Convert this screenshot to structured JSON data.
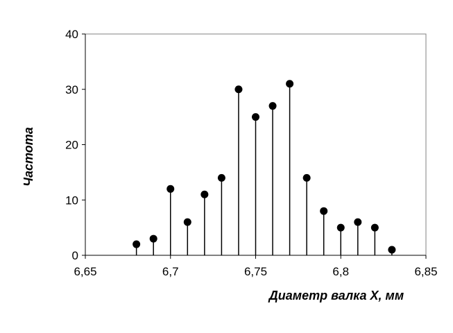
{
  "chart_data": {
    "type": "scatter",
    "style": "stem",
    "title": "",
    "xlabel": "Диаметр валка X, мм",
    "ylabel": "Частота",
    "xlim": [
      6.65,
      6.85
    ],
    "ylim": [
      0,
      40
    ],
    "x_ticks": [
      6.65,
      6.7,
      6.75,
      6.8,
      6.85
    ],
    "x_tick_labels": [
      "6,65",
      "6,7",
      "6,75",
      "6,8",
      "6,85"
    ],
    "y_ticks": [
      0,
      10,
      20,
      30,
      40
    ],
    "y_tick_labels": [
      "0",
      "10",
      "20",
      "30",
      "40"
    ],
    "grid": false,
    "legend": "none",
    "marker_color": "#000000",
    "series": [
      {
        "x": [
          6.68,
          6.69,
          6.7,
          6.71,
          6.72,
          6.73,
          6.74,
          6.75,
          6.76,
          6.77,
          6.78,
          6.79,
          6.8,
          6.81,
          6.82,
          6.83
        ],
        "y": [
          2,
          3,
          12,
          6,
          11,
          14,
          30,
          25,
          27,
          31,
          14,
          8,
          5,
          6,
          5,
          1
        ]
      }
    ]
  }
}
